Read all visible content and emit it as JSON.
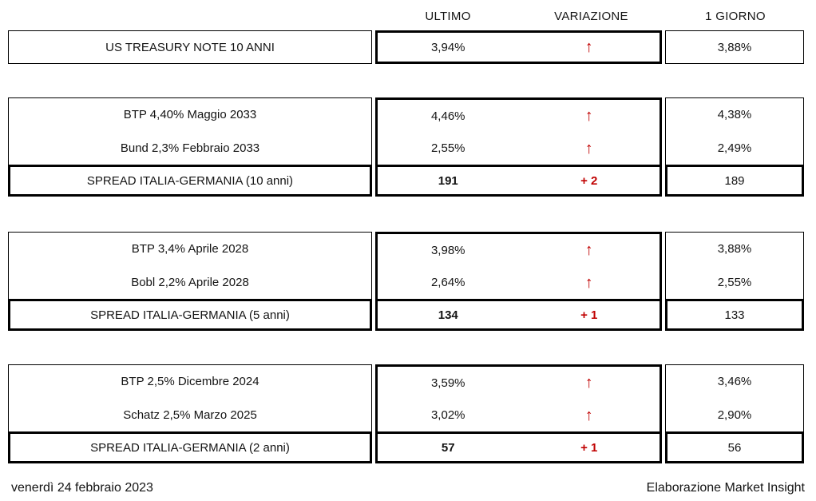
{
  "header": {
    "columns": {
      "ultimo": "ULTIMO",
      "variazione": "VARIAZIONE",
      "giorno": "1 GIORNO"
    }
  },
  "colors": {
    "accent_red": "#C00000",
    "border": "#000000",
    "background": "#FFFFFF"
  },
  "icons": {
    "up_arrow": "↑"
  },
  "blocks": [
    {
      "rows": [
        {
          "label": "US TREASURY NOTE 10 ANNI",
          "ultimo": "3,94%",
          "variazione": "↑",
          "giorno": "3,88%"
        }
      ]
    },
    {
      "rows": [
        {
          "label": "BTP 4,40% Maggio 2033",
          "ultimo": "4,46%",
          "variazione": "↑",
          "giorno": "4,38%"
        },
        {
          "label": "Bund 2,3% Febbraio 2033",
          "ultimo": "2,55%",
          "variazione": "↑",
          "giorno": "2,49%"
        }
      ],
      "spread": {
        "label": "SPREAD ITALIA-GERMANIA (10 anni)",
        "ultimo": "191",
        "variazione": "+ 2",
        "giorno": "189"
      }
    },
    {
      "rows": [
        {
          "label": "BTP 3,4% Aprile 2028",
          "ultimo": "3,98%",
          "variazione": "↑",
          "giorno": "3,88%"
        },
        {
          "label": "Bobl 2,2% Aprile 2028",
          "ultimo": "2,64%",
          "variazione": "↑",
          "giorno": "2,55%"
        }
      ],
      "spread": {
        "label": "SPREAD ITALIA-GERMANIA (5 anni)",
        "ultimo": "134",
        "variazione": "+ 1",
        "giorno": "133"
      }
    },
    {
      "rows": [
        {
          "label": "BTP 2,5% Dicembre 2024",
          "ultimo": "3,59%",
          "variazione": "↑",
          "giorno": "3,46%"
        },
        {
          "label": "Schatz 2,5% Marzo 2025",
          "ultimo": "3,02%",
          "variazione": "↑",
          "giorno": "2,90%"
        }
      ],
      "spread": {
        "label": "SPREAD ITALIA-GERMANIA (2 anni)",
        "ultimo": "57",
        "variazione": "+ 1",
        "giorno": "56"
      }
    }
  ],
  "footer": {
    "date": "venerdì 24 febbraio 2023",
    "source": "Elaborazione Market Insight"
  }
}
